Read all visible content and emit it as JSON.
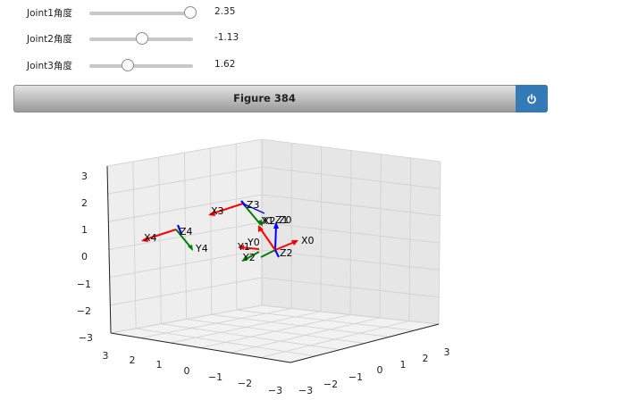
{
  "sliders": [
    {
      "label": "Joint1角度",
      "value": "2.35",
      "fraction": 0.98
    },
    {
      "label": "Joint2角度",
      "value": "-1.13",
      "fraction": 0.52
    },
    {
      "label": "Joint3角度",
      "value": "1.62",
      "fraction": 0.38
    }
  ],
  "figure": {
    "title": "Figure 384",
    "power_icon": "power-icon"
  },
  "plot": {
    "z_ticks": [
      "3",
      "2",
      "1",
      "0",
      "−1",
      "−2",
      "−3"
    ],
    "x_ticks": [
      "3",
      "2",
      "1",
      "0",
      "−1",
      "−2",
      "−3"
    ],
    "y_ticks": [
      "−3",
      "−2",
      "−1",
      "0",
      "1",
      "2",
      "3"
    ],
    "frame_labels": {
      "x0": "X0",
      "y0": "Y0",
      "z0": "Z0",
      "x1": "X1",
      "y1": "Y1",
      "z1": "Z1",
      "x2": "X2",
      "y2": "Y2",
      "z2": "Z2",
      "x3": "X3",
      "z3": "Z3",
      "x4": "X4",
      "y4": "Y4",
      "z4": "Z4"
    },
    "colors": {
      "x_axis": "#ff0000",
      "y_axis": "#008000",
      "z_axis": "#0000ff"
    }
  }
}
